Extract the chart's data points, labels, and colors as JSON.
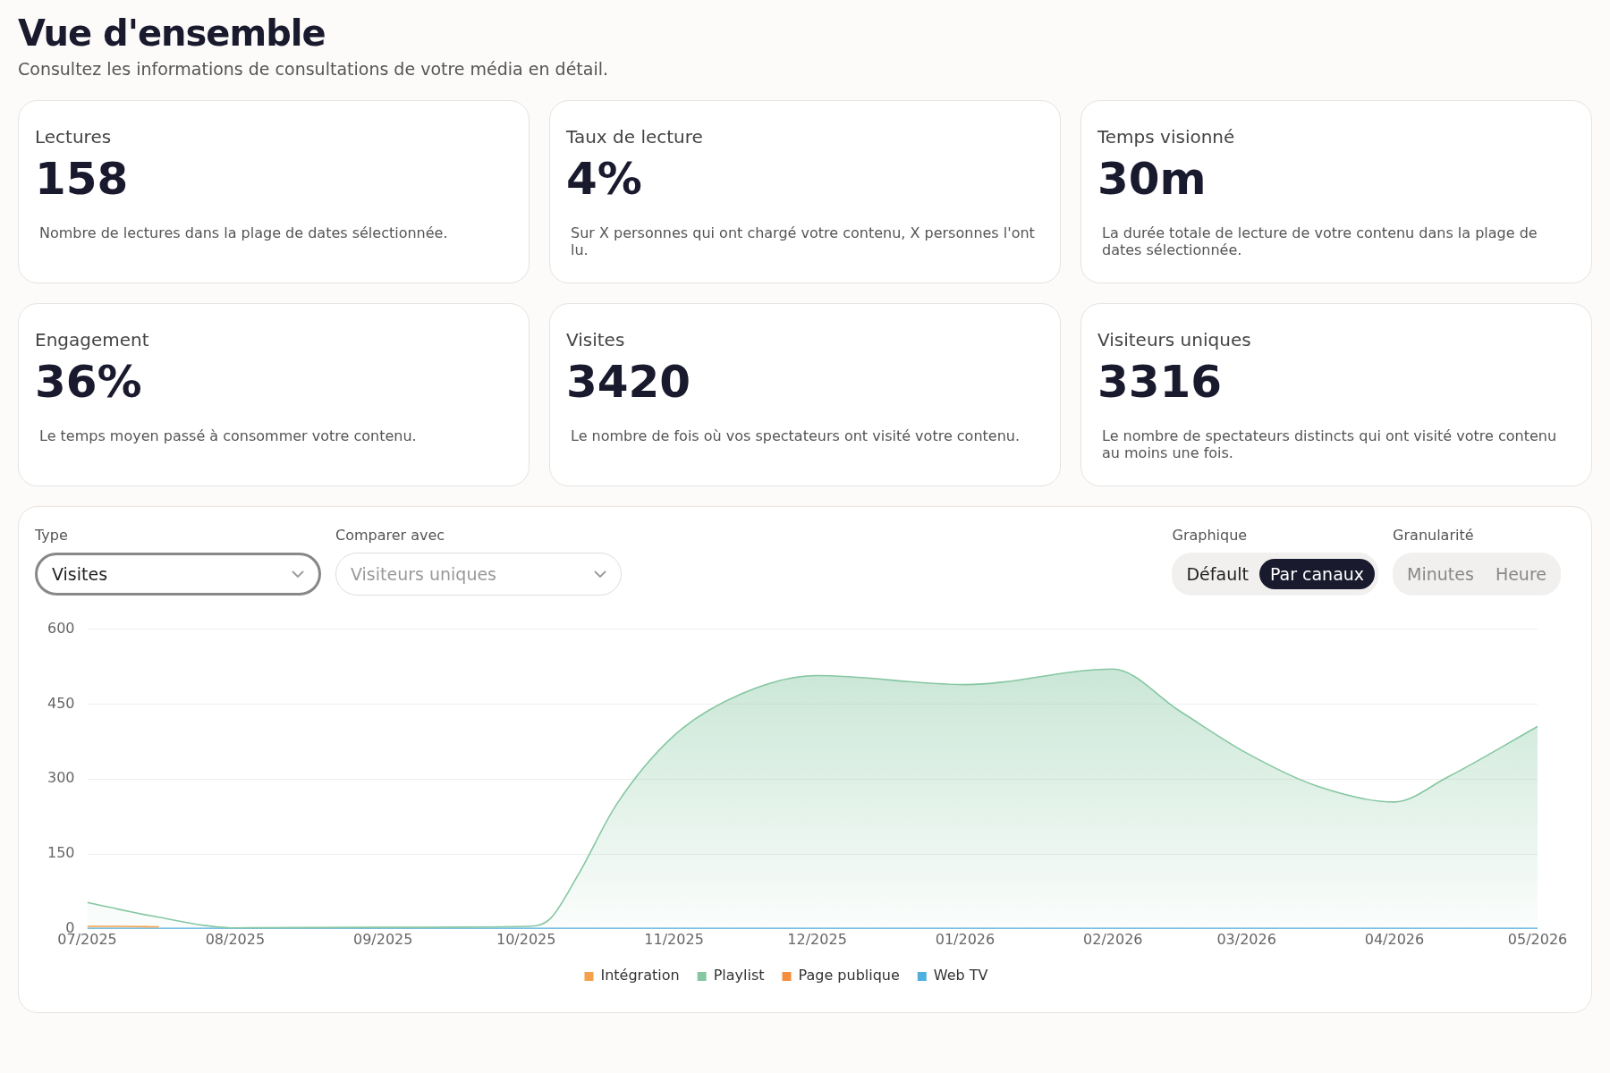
{
  "chart_data": [
    {
      "type": "other",
      "title": "Vue d'ensemble",
      "subtitle": "Consultez les informations de consultations de votre média en détail."
    },
    {
      "type": "other",
      "title": "Lectures",
      "annotations": [
        "158",
        "Nombre de lectures dans la plage de dates sélectionnée."
      ]
    },
    {
      "type": "other",
      "title": "Taux de lecture",
      "annotations": [
        "4%",
        "Sur X personnes qui ont chargé votre contenu, X personnes l'ont lu."
      ]
    },
    {
      "type": "other",
      "title": "Temps visionné",
      "annotations": [
        "30m",
        "La durée totale de lecture de votre contenu dans la plage de dates sélectionnée."
      ]
    },
    {
      "type": "other",
      "title": "Engagement",
      "annotations": [
        "36%",
        "Le temps moyen passé à consommer votre contenu."
      ]
    },
    {
      "type": "other",
      "title": "Visites",
      "annotations": [
        "3420",
        "Le nombre de fois où vos spectateurs ont visité votre contenu."
      ]
    },
    {
      "type": "other",
      "title": "Visiteurs uniques",
      "annotations": [
        "3316",
        "Le nombre de spectateurs distincts qui ont visité votre contenu au moins une fois."
      ]
    },
    {
      "type": "other",
      "annotations": [
        "Type",
        "Visites",
        "Comparer avec",
        "Visiteurs uniques",
        "Graphique",
        "Défault",
        "Par canaux",
        "Granularité",
        "Minutes",
        "Heure"
      ]
    },
    {
      "type": "area",
      "xlim": [
        "2025-07-01",
        "2026-05-01"
      ],
      "ylim": [
        0,
        600
      ],
      "yticks": [
        0,
        150,
        300,
        450,
        600
      ],
      "xticks": [
        {
          "value": "2025-07-01",
          "label": "07/2025"
        },
        {
          "value": "2025-08-01",
          "label": "08/2025"
        },
        {
          "value": "2025-09-01",
          "label": "09/2025"
        },
        {
          "value": "2025-10-01",
          "label": "10/2025"
        },
        {
          "value": "2025-11-01",
          "label": "11/2025"
        },
        {
          "value": "2025-12-01",
          "label": "12/2025"
        },
        {
          "value": "2026-01-01",
          "label": "01/2026"
        },
        {
          "value": "2026-02-01",
          "label": "02/2026"
        },
        {
          "value": "2026-03-01",
          "label": "03/2026"
        },
        {
          "value": "2026-04-01",
          "label": "04/2026"
        },
        {
          "value": "2026-05-01",
          "label": "05/2026"
        }
      ],
      "grid": "y",
      "legend": "bottom",
      "x": [
        "2025-07-01",
        "2025-08-01",
        "2025-09-01",
        "2025-10-01",
        "2025-11-01",
        "2025-12-01",
        "2026-01-01",
        "2026-02-01",
        "2026-03-01",
        "2026-04-01",
        "2026-05-01"
      ],
      "series": [
        {
          "name": "Intégration",
          "color": "#f5a04a",
          "x": [
            "2025-07-01",
            "2025-07-08",
            "2025-07-16"
          ],
          "values": [
            5,
            5,
            4
          ]
        },
        {
          "name": "Playlist",
          "color": "#86c7a2",
          "x": [
            "2025-07-01",
            "2025-07-15",
            "2025-08-01",
            "2025-09-01",
            "2025-10-01",
            "2025-10-06",
            "2025-10-12",
            "2025-10-20",
            "2025-11-01",
            "2025-11-15",
            "2025-12-01",
            "2026-01-01",
            "2026-02-01",
            "2026-02-15",
            "2026-03-01",
            "2026-03-16",
            "2026-04-01",
            "2026-04-12",
            "2026-05-01"
          ],
          "values": [
            53,
            25,
            2,
            3,
            5,
            20,
            110,
            250,
            387,
            470,
            507,
            489,
            520,
            436,
            352,
            285,
            254,
            303,
            405
          ]
        },
        {
          "name": "Page publique",
          "color": "#f58d3c",
          "values": [
            null,
            null,
            null,
            null,
            null,
            null,
            null,
            null,
            null,
            null,
            null
          ]
        },
        {
          "name": "Web TV",
          "type": "line",
          "color": "#4fb0de",
          "values": [
            0,
            0,
            0,
            0,
            0,
            0,
            0,
            0,
            0,
            0,
            0
          ]
        }
      ]
    }
  ]
}
